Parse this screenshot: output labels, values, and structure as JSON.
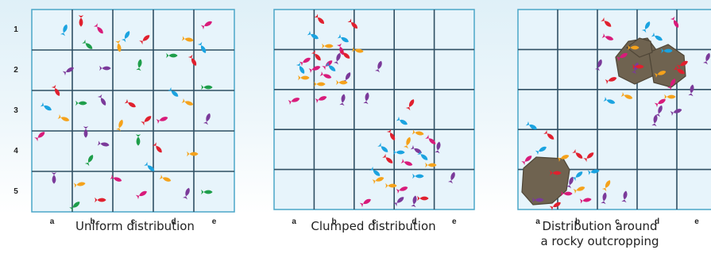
{
  "rows": [
    "1",
    "2",
    "3",
    "4",
    "5"
  ],
  "columns": [
    "a",
    "b",
    "c",
    "d",
    "e"
  ],
  "colors": {
    "grid_fill": "#e7f4fb",
    "grid_border": "#4aa6c8",
    "grid_line": "#2f4f63",
    "rock": "#6f6350",
    "rock_edge": "#4e4536",
    "fish_red": "#e0202e",
    "fish_magenta": "#d81b7a",
    "fish_blue": "#1ba3e0",
    "fish_orange": "#f5a21b",
    "fish_purple": "#7b3a9a",
    "fish_green": "#1e9e4a"
  },
  "panels": [
    {
      "caption_lines": [
        "Uniform distribution"
      ]
    },
    {
      "caption_lines": [
        "Clumped distribution"
      ]
    },
    {
      "caption_lines": [
        "Distribution around",
        "a rocky outcropping"
      ]
    }
  ]
}
